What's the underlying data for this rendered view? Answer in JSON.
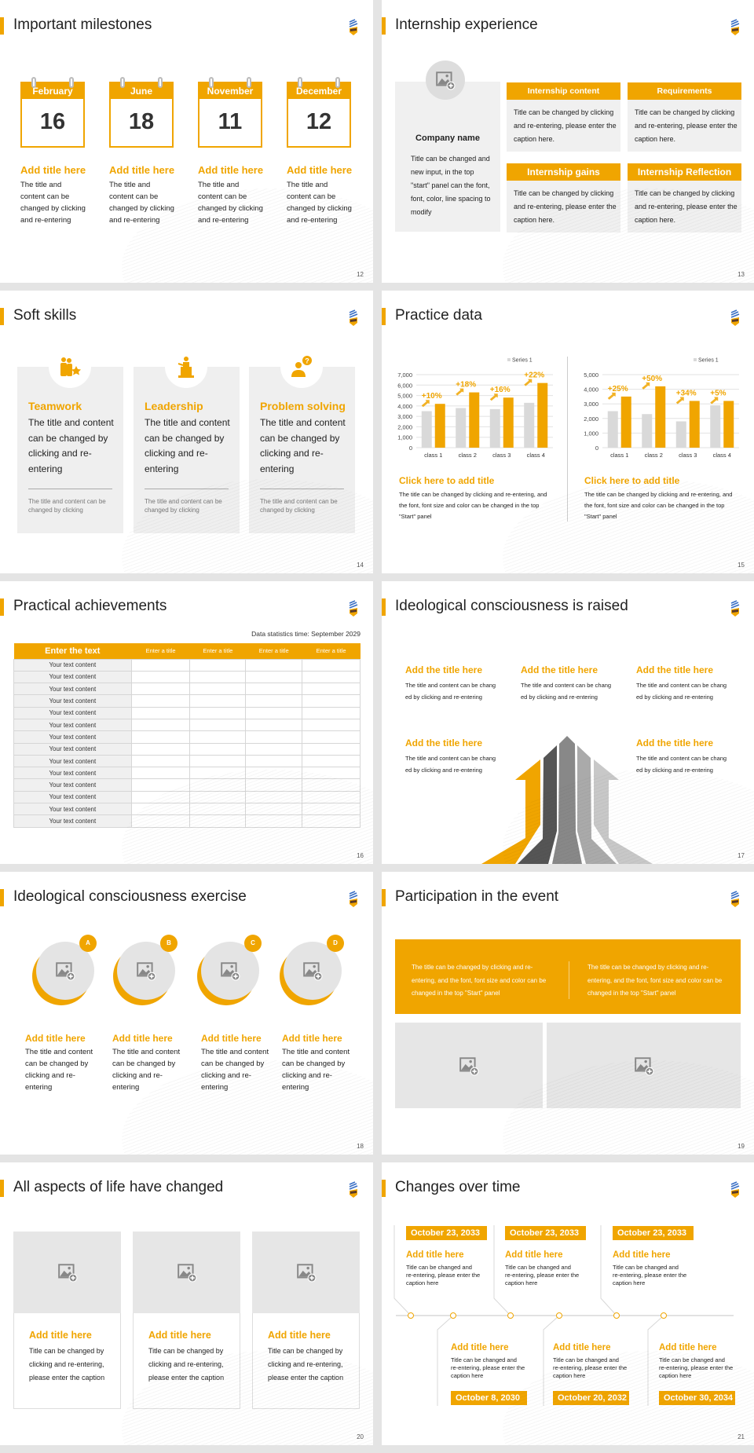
{
  "brand": {
    "accent": "#f0a500",
    "panel_gray": "#f0f0f0",
    "series_gray": "#d9d9d9"
  },
  "slides": [
    {
      "page": "12",
      "title": "Important milestones",
      "items": [
        {
          "month": "February",
          "day": "16",
          "title": "Add title here",
          "text": "The title and content can be changed by clicking and re-entering"
        },
        {
          "month": "June",
          "day": "18",
          "title": "Add title here",
          "text": "The title and content can be changed by clicking and re-entering"
        },
        {
          "month": "November",
          "day": "11",
          "title": "Add title here",
          "text": "The title and content can be changed by clicking and re-entering"
        },
        {
          "month": "December",
          "day": "12",
          "title": "Add title here",
          "text": "The title and content can be changed by clicking and re-entering"
        }
      ]
    },
    {
      "page": "13",
      "title": "Internship experience",
      "company": {
        "name": "Company name",
        "text": "Title can be changed and new input, in the top \"start\" panel can the font, font, color, line spacing to modify"
      },
      "boxes": [
        {
          "header": "Internship content",
          "text": "Title can be changed by clicking and re-entering, please enter the caption here."
        },
        {
          "header": "Requirements",
          "text": "Title can be changed by clicking and re-entering, please enter the caption here."
        },
        {
          "header": "Internship gains",
          "text": "Title can be changed by clicking and re-entering, please enter the caption here."
        },
        {
          "header": "Internship Reflection",
          "text": "Title can be changed by clicking and re-entering, please enter the caption here."
        }
      ]
    },
    {
      "page": "14",
      "title": "Soft skills",
      "cards": [
        {
          "icon": "teamwork-icon",
          "title": "Teamwork",
          "text": "The title and content can be changed by clicking and re-entering",
          "note": "The title and content can be changed by clicking"
        },
        {
          "icon": "leadership-podium-icon",
          "title": "Leadership",
          "text": "The title and content can be changed by clicking and re-entering",
          "note": "The title and content can be changed by clicking"
        },
        {
          "icon": "question-person-icon",
          "title": "Problem solving",
          "text": "The title and content can be changed by clicking and re-entering",
          "note": "The title and content can be changed by clicking"
        }
      ]
    },
    {
      "page": "15",
      "title": "Practice data",
      "panels": [
        {
          "title": "Click here to add title",
          "text": "The title can be changed by clicking and re-entering, and the font, font size and color can be changed in the top \"Start\" panel"
        },
        {
          "title": "Click here to add title",
          "text": "The title can be changed by clicking and re-entering, and the font, font size and color can be changed in the top \"Start\" panel"
        }
      ]
    },
    {
      "page": "16",
      "title": "Practical achievements",
      "stat_time": "Data statistics time: September 2029",
      "headers": [
        "Enter the text",
        "Enter a title",
        "Enter a title",
        "Enter a title",
        "Enter a title"
      ],
      "rows": [
        "Your text content",
        "Your text content",
        "Your text content",
        "Your text content",
        "Your text content",
        "Your text content",
        "Your text content",
        "Your text content",
        "Your text content",
        "Your text content",
        "Your text content",
        "Your text content",
        "Your text content",
        "Your text content"
      ]
    },
    {
      "page": "17",
      "title": "Ideological consciousness is raised",
      "blocks": [
        {
          "title": "Add the title here",
          "text": "The title and content can be chang ed by clicking and re-entering"
        },
        {
          "title": "Add the title here",
          "text": "The title and content can be chang ed by clicking and re-entering"
        },
        {
          "title": "Add the title here",
          "text": "The title and content can be chang ed by clicking and re-entering"
        },
        {
          "title": "Add the title here",
          "text": "The title and content can be chang ed by clicking and re-entering"
        },
        {
          "title": "Add the title here",
          "text": "The title and content can be chang ed by clicking and re-entering"
        }
      ]
    },
    {
      "page": "18",
      "title": "Ideological consciousness exercise",
      "items": [
        {
          "badge": "A",
          "title": "Add title here",
          "text": "The title and content can be changed by clicking and re-entering"
        },
        {
          "badge": "B",
          "title": "Add title here",
          "text": "The title and content can be changed by clicking and re-entering"
        },
        {
          "badge": "C",
          "title": "Add title here",
          "text": "The title and content can be changed by clicking and re-entering"
        },
        {
          "badge": "D",
          "title": "Add title here",
          "text": "The title and content can be changed by clicking and re-entering"
        }
      ]
    },
    {
      "page": "19",
      "title": "Participation in the event",
      "texts": [
        "The title can be changed by clicking and re-entering, and the font, font size and color can be changed in the top \"Start\" panel",
        "The title can be changed by clicking and re-entering, and the font, font size and color can be changed in the top \"Start\" panel"
      ]
    },
    {
      "page": "20",
      "title": "All aspects of life have changed",
      "items": [
        {
          "title": "Add title here",
          "text": "Title can be changed by clicking and re-entering, please enter the caption"
        },
        {
          "title": "Add title here",
          "text": "Title can be changed by clicking and re-entering, please enter the caption"
        },
        {
          "title": "Add title here",
          "text": "Title can be changed by clicking and re-entering, please enter the caption"
        }
      ]
    },
    {
      "page": "21",
      "title": "Changes over time",
      "top": [
        {
          "date": "October 23, 2033",
          "title": "Add title here",
          "text": "Title can be changed and re-entering, please enter the caption here"
        },
        {
          "date": "October 23, 2033",
          "title": "Add title here",
          "text": "Title can be changed and re-entering, please enter the caption here"
        },
        {
          "date": "October 23, 2033",
          "title": "Add title here",
          "text": "Title can be changed and re-entering, please enter the caption here"
        }
      ],
      "bottom": [
        {
          "date": "October 8, 2030",
          "title": "Add title here",
          "text": "Title can be changed and re-entering, please enter the caption here"
        },
        {
          "date": "October 20, 2032",
          "title": "Add title here",
          "text": "Title can be changed and re-entering, please enter the caption here"
        },
        {
          "date": "October 30, 2034",
          "title": "Add title here",
          "text": "Title can be changed and re-entering, please enter the caption here"
        }
      ]
    }
  ],
  "chart_data": [
    {
      "type": "bar",
      "categories": [
        "class 1",
        "class 2",
        "class 3",
        "class 4"
      ],
      "series": [
        {
          "name": "Series 1",
          "values": [
            3500,
            3800,
            3700,
            4300
          ]
        },
        {
          "values": [
            4200,
            5300,
            4800,
            6200
          ]
        }
      ],
      "annotations": [
        "+10%",
        "+18%",
        "+16%",
        "+22%"
      ],
      "ylim": [
        0,
        7000
      ],
      "yticks": [
        "0",
        "1,000",
        "2,000",
        "3,000",
        "4,000",
        "5,000",
        "6,000",
        "7,000"
      ],
      "grid": true,
      "legend": "top-right"
    },
    {
      "type": "bar",
      "categories": [
        "class 1",
        "class 2",
        "class 3",
        "class 4"
      ],
      "series": [
        {
          "name": "Series 1",
          "values": [
            2500,
            2300,
            1800,
            2900
          ]
        },
        {
          "values": [
            3500,
            4200,
            3200,
            3200
          ]
        }
      ],
      "annotations": [
        "+25%",
        "+50%",
        "+34%",
        "+5%"
      ],
      "ylim": [
        0,
        5000
      ],
      "yticks": [
        "0",
        "1,000",
        "2,000",
        "3,000",
        "4,000",
        "5,000"
      ],
      "grid": true,
      "legend": "top-right"
    }
  ]
}
